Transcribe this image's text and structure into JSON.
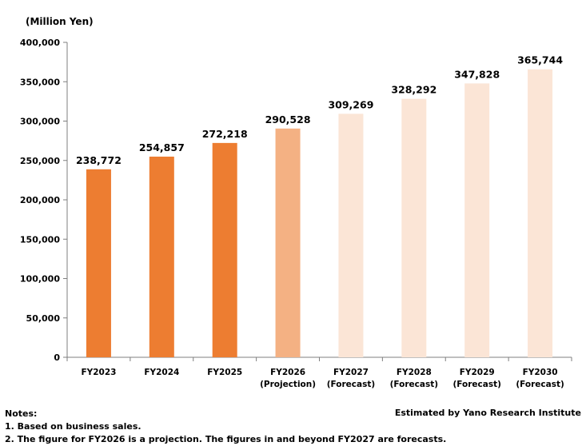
{
  "chart_data": {
    "type": "bar",
    "ylabel": "(Million Yen)",
    "ylim": [
      0,
      400000
    ],
    "yticks": [
      0,
      50000,
      100000,
      150000,
      200000,
      250000,
      300000,
      350000,
      400000
    ],
    "ytick_labels": [
      "0",
      "50,000",
      "100,000",
      "150,000",
      "200,000",
      "250,000",
      "300,000",
      "350,000",
      "400,000"
    ],
    "categories": [
      [
        "FY2023"
      ],
      [
        "FY2024"
      ],
      [
        "FY2025"
      ],
      [
        "FY2026",
        "(Projection)"
      ],
      [
        "FY2027",
        "(Forecast)"
      ],
      [
        "FY2028",
        "(Forecast)"
      ],
      [
        "FY2029",
        "(Forecast)"
      ],
      [
        "FY2030",
        "(Forecast)"
      ]
    ],
    "values": [
      238772,
      254857,
      272218,
      290528,
      309269,
      328292,
      347828,
      365744
    ],
    "data_labels": [
      "238,772",
      "254,857",
      "272,218",
      "290,528",
      "309,269",
      "328,292",
      "347,828",
      "365,744"
    ],
    "bar_colors": [
      "#ED7D31",
      "#ED7D31",
      "#ED7D31",
      "#F4B183",
      "#FBE5D6",
      "#FBE5D6",
      "#FBE5D6",
      "#FBE5D6"
    ],
    "grid": false,
    "legend": "none"
  },
  "notes": {
    "heading": "Notes:",
    "line1": "1. Based on business sales.",
    "line2": "2. The figure for FY2026 is a projection. The figures in and beyond FY2027 are forecasts."
  },
  "source": "Estimated by Yano Research Institute"
}
